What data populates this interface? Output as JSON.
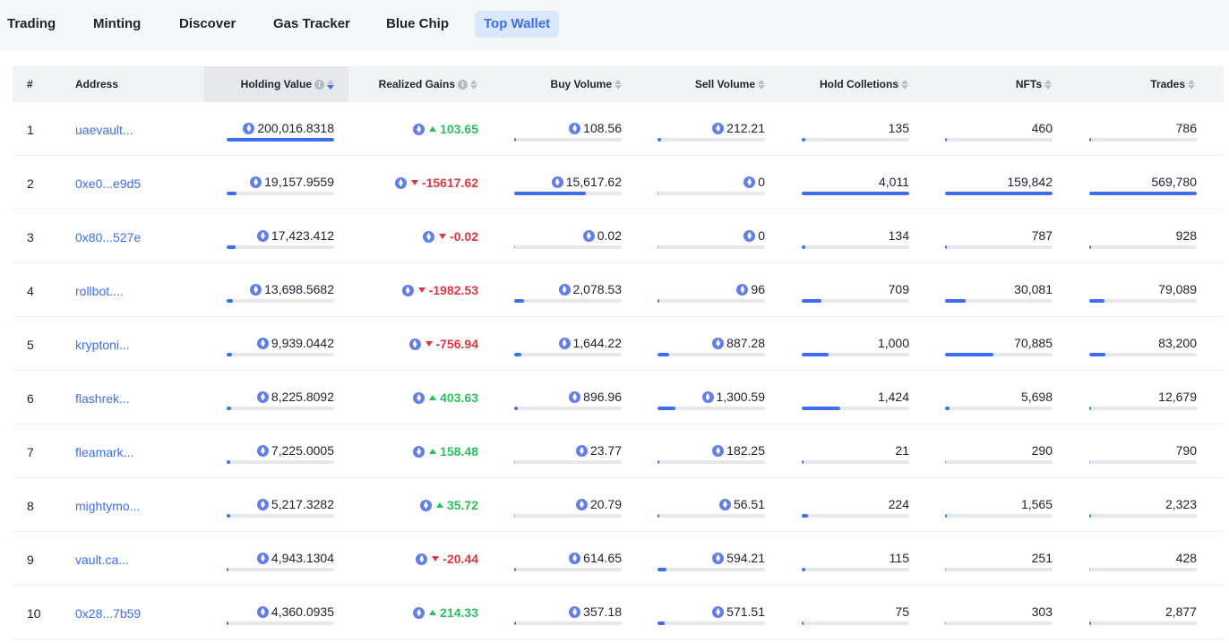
{
  "tabs": [
    {
      "label": "Trading",
      "active": false
    },
    {
      "label": "Minting",
      "active": false
    },
    {
      "label": "Discover",
      "active": false
    },
    {
      "label": "Gas Tracker",
      "active": false
    },
    {
      "label": "Blue Chip",
      "active": false
    },
    {
      "label": "Top Wallet",
      "active": true
    }
  ],
  "colors": {
    "accent": "#3d6ef0",
    "gain_up": "#2dbe60",
    "gain_down": "#e0373f",
    "eth_icon": "#627eea"
  },
  "table": {
    "headers": {
      "rank": "#",
      "address": "Address",
      "holding_value": "Holding Value",
      "realized_gains": "Realized Gains",
      "buy_volume": "Buy Volume",
      "sell_volume": "Sell Volume",
      "hold_collections": "Hold Colletions",
      "nfts": "NFTs",
      "trades": "Trades"
    },
    "sorted_by": "holding_value",
    "sort_direction": "desc",
    "rows": [
      {
        "rank": "1",
        "address": "uaevault...",
        "holding_value": "200,016.8318",
        "holding_bar": 1.0,
        "gain": "103.65",
        "gain_dir": "up",
        "buy": "108.56",
        "buy_bar": 0.01,
        "sell": "212.21",
        "sell_bar": 0.03,
        "hold": "135",
        "hold_bar": 0.03,
        "nfts": "460",
        "nfts_bar": 0.01,
        "trades": "786",
        "trades_bar": 0.01
      },
      {
        "rank": "2",
        "address": "0xe0...e9d5",
        "holding_value": "19,157.9559",
        "holding_bar": 0.09,
        "gain": "-15617.62",
        "gain_dir": "down",
        "buy": "15,617.62",
        "buy_bar": 0.67,
        "sell": "0",
        "sell_bar": 0.0,
        "hold": "4,011",
        "hold_bar": 1.0,
        "nfts": "159,842",
        "nfts_bar": 1.0,
        "trades": "569,780",
        "trades_bar": 1.0
      },
      {
        "rank": "3",
        "address": "0x80...527e",
        "holding_value": "17,423.412",
        "holding_bar": 0.08,
        "gain": "-0.02",
        "gain_dir": "down",
        "buy": "0.02",
        "buy_bar": 0.0,
        "sell": "0",
        "sell_bar": 0.0,
        "hold": "134",
        "hold_bar": 0.03,
        "nfts": "787",
        "nfts_bar": 0.01,
        "trades": "928",
        "trades_bar": 0.01
      },
      {
        "rank": "4",
        "address": "rollbot....",
        "holding_value": "13,698.5682",
        "holding_bar": 0.06,
        "gain": "-1982.53",
        "gain_dir": "down",
        "buy": "2,078.53",
        "buy_bar": 0.09,
        "sell": "96",
        "sell_bar": 0.01,
        "hold": "709",
        "hold_bar": 0.18,
        "nfts": "30,081",
        "nfts_bar": 0.19,
        "trades": "79,089",
        "trades_bar": 0.14
      },
      {
        "rank": "5",
        "address": "kryptoni...",
        "holding_value": "9,939.0442",
        "holding_bar": 0.05,
        "gain": "-756.94",
        "gain_dir": "down",
        "buy": "1,644.22",
        "buy_bar": 0.07,
        "sell": "887.28",
        "sell_bar": 0.11,
        "hold": "1,000",
        "hold_bar": 0.25,
        "nfts": "70,885",
        "nfts_bar": 0.45,
        "trades": "83,200",
        "trades_bar": 0.15
      },
      {
        "rank": "6",
        "address": "flashrek...",
        "holding_value": "8,225.8092",
        "holding_bar": 0.04,
        "gain": "403.63",
        "gain_dir": "up",
        "buy": "896.96",
        "buy_bar": 0.03,
        "sell": "1,300.59",
        "sell_bar": 0.17,
        "hold": "1,424",
        "hold_bar": 0.36,
        "nfts": "5,698",
        "nfts_bar": 0.04,
        "trades": "12,679",
        "trades_bar": 0.02
      },
      {
        "rank": "7",
        "address": "fleamark...",
        "holding_value": "7,225.0005",
        "holding_bar": 0.03,
        "gain": "158.48",
        "gain_dir": "up",
        "buy": "23.77",
        "buy_bar": 0.0,
        "sell": "182.25",
        "sell_bar": 0.02,
        "hold": "21",
        "hold_bar": 0.01,
        "nfts": "290",
        "nfts_bar": 0.0,
        "trades": "790",
        "trades_bar": 0.0
      },
      {
        "rank": "8",
        "address": "mightymo...",
        "holding_value": "5,217.3282",
        "holding_bar": 0.03,
        "gain": "35.72",
        "gain_dir": "up",
        "buy": "20.79",
        "buy_bar": 0.0,
        "sell": "56.51",
        "sell_bar": 0.01,
        "hold": "224",
        "hold_bar": 0.06,
        "nfts": "1,565",
        "nfts_bar": 0.01,
        "trades": "2,323",
        "trades_bar": 0.01
      },
      {
        "rank": "9",
        "address": "vault.ca...",
        "holding_value": "4,943.1304",
        "holding_bar": 0.02,
        "gain": "-20.44",
        "gain_dir": "down",
        "buy": "614.65",
        "buy_bar": 0.02,
        "sell": "594.21",
        "sell_bar": 0.08,
        "hold": "115",
        "hold_bar": 0.03,
        "nfts": "251",
        "nfts_bar": 0.0,
        "trades": "428",
        "trades_bar": 0.0
      },
      {
        "rank": "10",
        "address": "0x28...7b59",
        "holding_value": "4,360.0935",
        "holding_bar": 0.02,
        "gain": "214.33",
        "gain_dir": "up",
        "buy": "357.18",
        "buy_bar": 0.01,
        "sell": "571.51",
        "sell_bar": 0.07,
        "hold": "75",
        "hold_bar": 0.02,
        "nfts": "303",
        "nfts_bar": 0.0,
        "trades": "2,877",
        "trades_bar": 0.01
      }
    ]
  }
}
